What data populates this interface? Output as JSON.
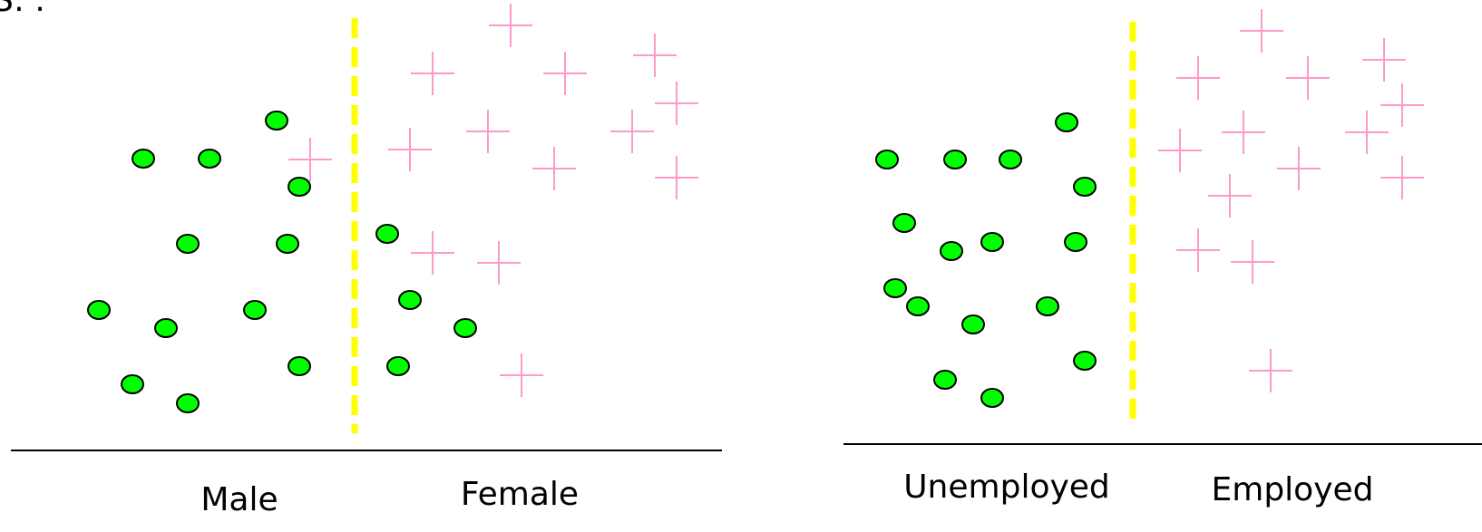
{
  "colors": {
    "circle_fill": "#00ff00",
    "circle_stroke": "#000000",
    "cross": "#ff99cc",
    "divider": "#ffff00",
    "axis": "#000000"
  },
  "left_panel": {
    "left_label": "Male",
    "right_label": "Female"
  },
  "right_panel": {
    "left_label": "Unemployed",
    "right_label": "Employed"
  },
  "corner_fragment": "S: ."
}
